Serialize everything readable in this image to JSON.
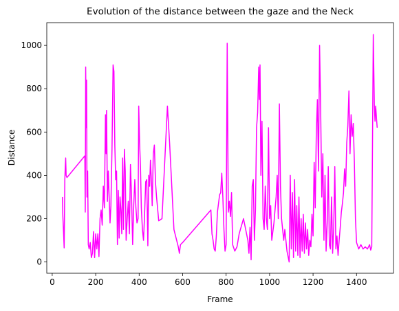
{
  "chart_data": {
    "type": "line",
    "title": "Evolution of the distance between the gaze and the Neck",
    "xlabel": "Frame",
    "ylabel": "Distance",
    "xlim": [
      -25,
      1570
    ],
    "ylim": [
      -52,
      1105
    ],
    "xticks": [
      0,
      200,
      400,
      600,
      800,
      1000,
      1200,
      1400
    ],
    "yticks": [
      0,
      200,
      400,
      600,
      800,
      1000
    ],
    "grid": false,
    "series": [
      {
        "color": "#ff00ff",
        "x": [
          47,
          49,
          52,
          55,
          58,
          60,
          62,
          64,
          68,
          150,
          152,
          154,
          156,
          158,
          160,
          163,
          166,
          170,
          175,
          180,
          185,
          190,
          195,
          200,
          205,
          210,
          215,
          220,
          225,
          230,
          235,
          240,
          245,
          248,
          250,
          254,
          258,
          262,
          266,
          270,
          275,
          280,
          284,
          288,
          292,
          296,
          300,
          304,
          308,
          312,
          316,
          320,
          324,
          328,
          332,
          336,
          340,
          345,
          350,
          355,
          360,
          365,
          370,
          375,
          380,
          385,
          390,
          395,
          398,
          402,
          406,
          410,
          415,
          420,
          425,
          430,
          435,
          440,
          444,
          448,
          452,
          456,
          460,
          465,
          470,
          475,
          480,
          490,
          505,
          530,
          540,
          560,
          580,
          585,
          590,
          600,
          730,
          735,
          740,
          745,
          750,
          755,
          760,
          770,
          775,
          780,
          785,
          790,
          795,
          800,
          805,
          810,
          815,
          820,
          825,
          830,
          840,
          850,
          860,
          880,
          900,
          905,
          910,
          915,
          920,
          925,
          930,
          935,
          940,
          945,
          950,
          953,
          956,
          960,
          965,
          970,
          975,
          980,
          985,
          990,
          995,
          1000,
          1005,
          1010,
          1015,
          1020,
          1030,
          1035,
          1040,
          1045,
          1050,
          1055,
          1060,
          1065,
          1070,
          1080,
          1090,
          1095,
          1100,
          1105,
          1110,
          1115,
          1120,
          1125,
          1130,
          1135,
          1140,
          1145,
          1150,
          1155,
          1160,
          1165,
          1170,
          1175,
          1180,
          1185,
          1190,
          1195,
          1200,
          1205,
          1210,
          1215,
          1220,
          1225,
          1230,
          1235,
          1240,
          1245,
          1250,
          1255,
          1260,
          1265,
          1270,
          1275,
          1280,
          1285,
          1290,
          1295,
          1300,
          1305,
          1310,
          1315,
          1320,
          1325,
          1330,
          1335,
          1340,
          1345,
          1350,
          1355,
          1360,
          1365,
          1370,
          1375,
          1380,
          1385,
          1390,
          1395,
          1400,
          1410,
          1420,
          1430,
          1440,
          1450,
          1460,
          1465,
          1470,
          1477,
          1482,
          1485,
          1488,
          1492,
          1495
        ],
        "values": [
          300,
          210,
          140,
          65,
          380,
          440,
          480,
          400,
          390,
          490,
          230,
          900,
          620,
          840,
          300,
          420,
          80,
          60,
          90,
          20,
          40,
          140,
          20,
          130,
          60,
          130,
          25,
          200,
          240,
          170,
          350,
          250,
          680,
          500,
          700,
          280,
          420,
          300,
          180,
          260,
          520,
          910,
          880,
          540,
          380,
          420,
          80,
          330,
          110,
          300,
          240,
          130,
          480,
          150,
          520,
          420,
          100,
          200,
          280,
          130,
          450,
          300,
          80,
          260,
          380,
          250,
          180,
          200,
          720,
          550,
          440,
          250,
          150,
          100,
          220,
          370,
          380,
          75,
          400,
          350,
          470,
          380,
          260,
          500,
          540,
          370,
          300,
          190,
          200,
          720,
          550,
          150,
          70,
          40,
          80,
          90,
          240,
          130,
          100,
          60,
          50,
          120,
          230,
          310,
          320,
          410,
          300,
          150,
          50,
          80,
          1010,
          230,
          280,
          210,
          320,
          80,
          50,
          70,
          130,
          200,
          100,
          40,
          160,
          10,
          350,
          380,
          100,
          240,
          620,
          690,
          900,
          750,
          910,
          400,
          650,
          200,
          150,
          350,
          200,
          150,
          620,
          200,
          260,
          100,
          140,
          180,
          300,
          400,
          200,
          730,
          350,
          200,
          150,
          100,
          150,
          50,
          0,
          400,
          60,
          320,
          20,
          380,
          50,
          260,
          30,
          300,
          20,
          200,
          50,
          220,
          40,
          180,
          60,
          150,
          30,
          100,
          70,
          220,
          120,
          460,
          250,
          600,
          750,
          420,
          1000,
          700,
          300,
          500,
          100,
          400,
          50,
          180,
          440,
          80,
          60,
          300,
          40,
          160,
          440,
          60,
          120,
          30,
          100,
          160,
          230,
          270,
          320,
          430,
          350,
          550,
          630,
          790,
          500,
          680,
          580,
          640,
          460,
          200,
          90,
          60,
          80,
          60,
          70,
          60,
          80,
          55,
          70,
          1050,
          720,
          650,
          720,
          660,
          620
        ]
      }
    ]
  }
}
